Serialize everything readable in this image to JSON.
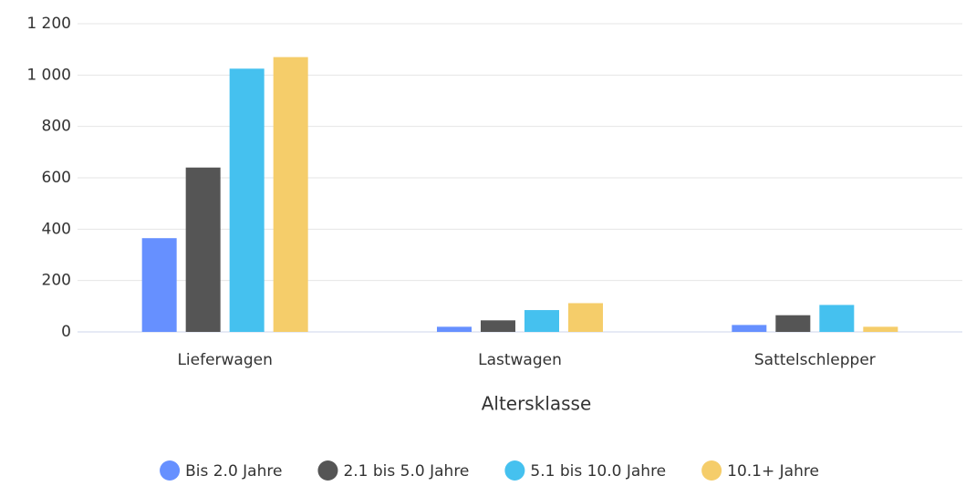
{
  "chart_data": {
    "type": "bar",
    "x_label": "Altersklasse",
    "categories": [
      "Lieferwagen",
      "Lastwagen",
      "Sattelschlepper"
    ],
    "series": [
      {
        "name": "Bis 2.0 Jahre",
        "color": "#6690ff",
        "values": [
          365,
          20,
          27
        ]
      },
      {
        "name": "2.1 bis 5.0 Jahre",
        "color": "#555555",
        "values": [
          640,
          45,
          65
        ]
      },
      {
        "name": "5.1 bis 10.0 Jahre",
        "color": "#45c1ef",
        "values": [
          1025,
          85,
          105
        ]
      },
      {
        "name": "10.1+ Jahre",
        "color": "#f5cd6a",
        "values": [
          1070,
          112,
          20
        ]
      }
    ],
    "ylim": [
      0,
      1200
    ],
    "yticks": [
      0,
      200,
      400,
      600,
      800,
      {
        "value": 1000,
        "label": "1 000"
      },
      {
        "value": 1200,
        "label": "1 200"
      }
    ],
    "grid": true,
    "legend": "bottom"
  }
}
